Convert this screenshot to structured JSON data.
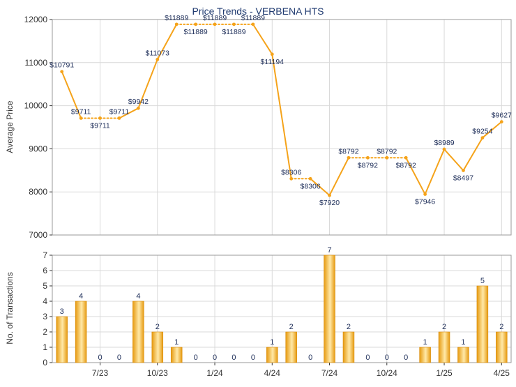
{
  "title": "Price Trends - VERBENA HTS",
  "colors": {
    "line": "#f5a31a",
    "bar_light": "#ffe9a8",
    "bar_dark": "#e69a10",
    "grid": "#d9d9d9",
    "axis": "#333333",
    "title": "#1f3a70",
    "label": "#1f2f5a"
  },
  "chart_data": [
    {
      "type": "line",
      "title": "Price Trends - VERBENA HTS",
      "ylabel": "Average Price",
      "ylim": [
        7000,
        12000
      ],
      "yticks": [
        "7000",
        "8000",
        "9000",
        "10000",
        "11000",
        "12000"
      ],
      "grid": true,
      "values": [
        10791,
        9711,
        9711,
        9711,
        9942,
        11073,
        11889,
        11889,
        11889,
        11889,
        11889,
        11194,
        8306,
        8306,
        7920,
        8792,
        8792,
        8792,
        8792,
        7946,
        8989,
        8497,
        9254,
        9627
      ],
      "point_labels": [
        "$10791",
        "$9711",
        "$9711",
        "$9711",
        "$9942",
        "$11073",
        "$11889",
        "$11889",
        "$11889",
        "$11889",
        "$11889",
        "$11194",
        "$8306",
        "$8306",
        "$7920",
        "$8792",
        "$8792",
        "$8792",
        "$8792",
        "$7946",
        "$8989",
        "$8497",
        "$9254",
        "$9627"
      ],
      "label_pos": [
        "above",
        "above",
        "below",
        "above",
        "above",
        "above",
        "above",
        "below",
        "above",
        "below",
        "above",
        "below",
        "above",
        "below",
        "below",
        "above",
        "below",
        "above",
        "below",
        "below",
        "above",
        "below",
        "above",
        "above"
      ],
      "dotted_segments": [
        [
          1,
          3
        ],
        [
          6,
          10
        ],
        [
          12,
          13
        ],
        [
          15,
          18
        ]
      ]
    },
    {
      "type": "bar",
      "ylabel": "No. of Transactions",
      "ylim": [
        0,
        7
      ],
      "yticks": [
        "0",
        "1",
        "2",
        "3",
        "4",
        "5",
        "6",
        "7"
      ],
      "xtick_labels": [
        "7/23",
        "10/23",
        "1/24",
        "4/24",
        "7/24",
        "10/24",
        "1/25",
        "4/25"
      ],
      "grid": true,
      "values": [
        3,
        4,
        0,
        0,
        4,
        2,
        1,
        0,
        0,
        0,
        0,
        1,
        2,
        0,
        7,
        2,
        0,
        0,
        0,
        1,
        2,
        1,
        5,
        2
      ],
      "value_labels": [
        "3",
        "4",
        "0",
        "0",
        "4",
        "2",
        "1",
        "0",
        "0",
        "0",
        "0",
        "1",
        "2",
        "0",
        "7",
        "2",
        "0",
        "0",
        "0",
        "1",
        "2",
        "1",
        "5",
        "2"
      ]
    }
  ]
}
